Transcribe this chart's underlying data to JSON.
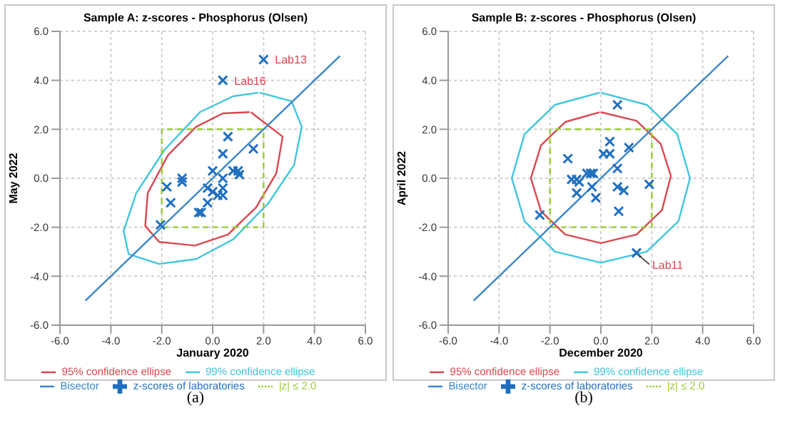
{
  "chart_data": [
    {
      "type": "scatter",
      "title": "Sample A: z-scores - Phosphorus (Olsen)",
      "xlabel": "January 2020",
      "ylabel": "May 2022",
      "xlim": [
        -6,
        6
      ],
      "ylim": [
        -6,
        6
      ],
      "xticks": [
        {
          "value": -6,
          "label": "-6.0"
        },
        {
          "value": -4,
          "label": "-4.0"
        },
        {
          "value": -2,
          "label": "-2.0"
        },
        {
          "value": 0,
          "label": "0.0"
        },
        {
          "value": 2,
          "label": "2.0"
        },
        {
          "value": 4,
          "label": "4.0"
        },
        {
          "value": 6,
          "label": "6.0"
        }
      ],
      "yticks": [
        {
          "value": -6,
          "label": "-6.0"
        },
        {
          "value": -4,
          "label": "-4.0"
        },
        {
          "value": -2,
          "label": "-2.0"
        },
        {
          "value": 0,
          "label": "0.0"
        },
        {
          "value": 2,
          "label": "2.0"
        },
        {
          "value": 4,
          "label": "4.0"
        },
        {
          "value": 6,
          "label": "6.0"
        }
      ],
      "grid": true,
      "legend": "bottom",
      "series": [
        {
          "name": "z-scores of laboratories",
          "type": "scatter",
          "marker": "cross",
          "color": "#1f6fc0",
          "x": [
            2.0,
            0.4,
            0.6,
            0.4,
            1.6,
            0,
            0.8,
            1.0,
            1.05,
            0.4,
            -1.2,
            -1.2,
            -1.8,
            -0.2,
            0,
            0.2,
            0.4,
            0.4,
            -1.65,
            -0.2,
            -0.55,
            -0.45,
            -2.05
          ],
          "values": [
            4.85,
            4.0,
            1.7,
            1.0,
            1.2,
            0.3,
            0.3,
            0.3,
            0.15,
            0,
            0,
            -0.15,
            -0.35,
            -0.4,
            -0.55,
            -0.7,
            -0.4,
            -0.7,
            -1.0,
            -1.0,
            -1.4,
            -1.4,
            -1.9
          ]
        },
        {
          "name": "95% confidence ellipse",
          "type": "line",
          "color": "#d9474f",
          "x": [
            1.5,
            2.75,
            2.5,
            1.7,
            0.6,
            -0.7,
            -2.1,
            -2.65,
            -2.55,
            -1.75,
            -0.65,
            0.4,
            1.45
          ],
          "values": [
            2.7,
            1.7,
            0.2,
            -1.2,
            -2.3,
            -2.75,
            -2.6,
            -1.95,
            -0.6,
            0.95,
            2.1,
            2.65,
            2.7
          ]
        },
        {
          "name": "99% confidence ellipse",
          "type": "line",
          "color": "#3fc6dc",
          "x": [
            1.85,
            3.1,
            3.5,
            3.2,
            2.2,
            0.8,
            -0.65,
            -2.1,
            -3.3,
            -3.5,
            -3.0,
            -1.9,
            -0.5,
            0.8,
            1.8
          ],
          "values": [
            3.5,
            3.15,
            2.1,
            0.55,
            -1.0,
            -2.5,
            -3.3,
            -3.5,
            -3.1,
            -2.15,
            -0.6,
            1.15,
            2.7,
            3.35,
            3.5
          ]
        },
        {
          "name": "|z| ≤ 2.0",
          "type": "line",
          "line_style": "dashed",
          "color": "#9acd32",
          "x": [
            0,
            2,
            2,
            -2,
            -2,
            -0.05
          ],
          "values": [
            -2,
            -2,
            2,
            2,
            -2,
            -2
          ]
        },
        {
          "name": "Bisector",
          "type": "line",
          "color": "#3a86c8",
          "x": [
            -5,
            5
          ],
          "values": [
            -5,
            5
          ]
        }
      ],
      "annotations": [
        {
          "text": "Lab13",
          "x": 2.0,
          "y": 4.85
        },
        {
          "text": "Lab16",
          "x": 0.4,
          "y": 4.0
        },
        "(a)"
      ]
    },
    {
      "type": "scatter",
      "title": "Sample B: z-scores - Phosphorus (Olsen)",
      "xlabel": "December 2020",
      "ylabel": "April 2022",
      "xlim": [
        -6,
        6
      ],
      "ylim": [
        -6,
        6
      ],
      "xticks": [
        {
          "value": -6,
          "label": "-6.0"
        },
        {
          "value": -4,
          "label": "-4.0"
        },
        {
          "value": -2,
          "label": "-2.0"
        },
        {
          "value": 0,
          "label": "0.0"
        },
        {
          "value": 2,
          "label": "2.0"
        },
        {
          "value": 4,
          "label": "4.0"
        },
        {
          "value": 6,
          "label": "6.0"
        }
      ],
      "yticks": [
        {
          "value": -6,
          "label": "-6.0"
        },
        {
          "value": -4,
          "label": "-4.0"
        },
        {
          "value": -2,
          "label": "-2.0"
        },
        {
          "value": 0,
          "label": "0.0"
        },
        {
          "value": 2,
          "label": "2.0"
        },
        {
          "value": 4,
          "label": "4.0"
        },
        {
          "value": 6,
          "label": "6.0"
        }
      ],
      "grid": true,
      "legend": "bottom",
      "series": [
        {
          "name": "z-scores of laboratories",
          "type": "scatter",
          "marker": "cross",
          "color": "#1f6fc0",
          "x": [
            0.65,
            0.35,
            0.1,
            0.35,
            1.1,
            -1.3,
            0.65,
            -0.55,
            -0.4,
            -0.3,
            -1.15,
            -0.95,
            -0.85,
            -0.35,
            0.65,
            0.9,
            -0.95,
            -0.2,
            1.9,
            0.7,
            -2.4,
            1.4
          ],
          "values": [
            3.0,
            1.5,
            1.0,
            1.0,
            1.25,
            0.8,
            0.4,
            0.2,
            0.2,
            0.2,
            -0.05,
            -0.05,
            -0.15,
            -0.35,
            -0.35,
            -0.5,
            -0.6,
            -0.8,
            -0.25,
            -1.35,
            -1.5,
            -3.05
          ]
        },
        {
          "name": "95% confidence ellipse",
          "type": "line",
          "color": "#d9474f",
          "x": [
            0,
            1.4,
            2.35,
            2.75,
            2.4,
            1.4,
            0,
            -1.4,
            -2.35,
            -2.75,
            -2.35,
            -1.4,
            -0.05
          ],
          "values": [
            2.7,
            2.35,
            1.4,
            0.1,
            -1.3,
            -2.3,
            -2.65,
            -2.3,
            -1.35,
            0,
            1.35,
            2.3,
            2.7
          ]
        },
        {
          "name": "99% confidence ellipse",
          "type": "line",
          "color": "#3fc6dc",
          "x": [
            0,
            1.8,
            3.0,
            3.5,
            3.05,
            1.8,
            0,
            -1.8,
            -3.0,
            -3.5,
            -3.0,
            -1.8,
            -0.05
          ],
          "values": [
            3.5,
            3.0,
            1.8,
            0,
            -1.75,
            -3.0,
            -3.45,
            -3.0,
            -1.75,
            0,
            1.8,
            3.0,
            3.5
          ]
        },
        {
          "name": "|z| ≤ 2.0",
          "type": "line",
          "line_style": "dashed",
          "color": "#9acd32",
          "x": [
            0,
            2,
            2,
            -2,
            -2,
            -0.05
          ],
          "values": [
            -2,
            -2,
            2,
            2,
            -2,
            -2
          ]
        },
        {
          "name": "Bisector",
          "type": "line",
          "color": "#3a86c8",
          "x": [
            -5,
            5
          ],
          "values": [
            -5,
            5
          ]
        }
      ],
      "annotations": [
        {
          "text": "Lab11",
          "x": 1.4,
          "y": -3.05
        },
        "(b)"
      ]
    }
  ]
}
